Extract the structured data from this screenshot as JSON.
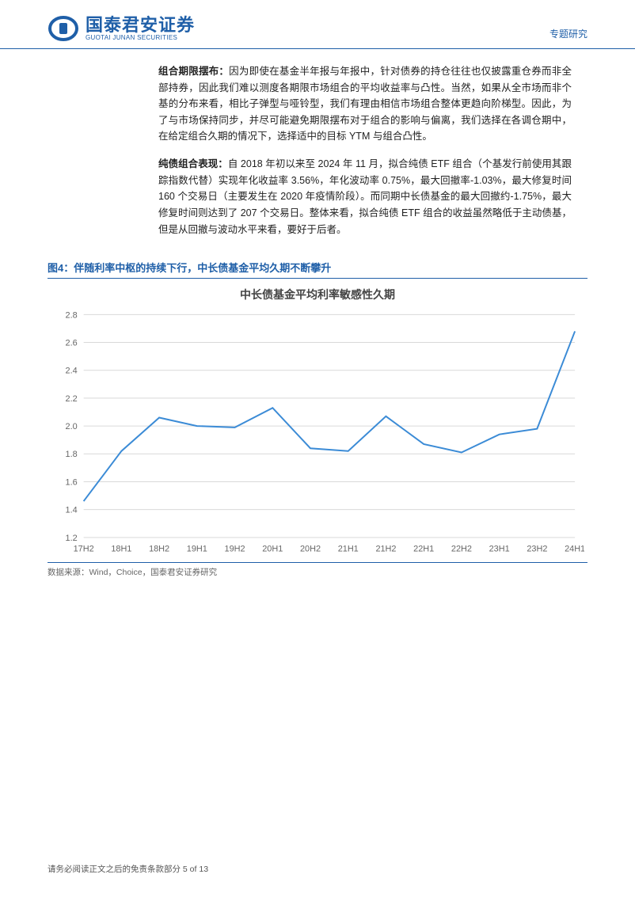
{
  "header": {
    "logo_cn": "国泰君安证券",
    "logo_en": "GUOTAI JUNAN SECURITIES",
    "category": "专题研究"
  },
  "body": {
    "p1_lead": "组合期限摆布：",
    "p1_text": "因为即使在基金半年报与年报中，针对债券的持仓往往也仅披露重仓券而非全部持券，因此我们难以测度各期限市场组合的平均收益率与凸性。当然，如果从全市场而非个基的分布来看，相比子弹型与哑铃型，我们有理由相信市场组合整体更趋向阶梯型。因此，为了与市场保持同步，并尽可能避免期限摆布对于组合的影响与偏离，我们选择在各调仓期中，在给定组合久期的情况下，选择适中的目标 YTM 与组合凸性。",
    "p2_lead": "纯债组合表现：",
    "p2_text": "自 2018 年初以来至 2024 年 11 月，拟合纯债 ETF 组合（个基发行前使用其跟踪指数代替）实现年化收益率 3.56%，年化波动率 0.75%，最大回撤率-1.03%，最大修复时间 160 个交易日（主要发生在 2020 年疫情阶段）。而同期中长债基金的最大回撤约-1.75%，最大修复时间则达到了 207 个交易日。整体来看，拟合纯债 ETF 组合的收益虽然略低于主动债基，但是从回撤与波动水平来看，要好于后者。"
  },
  "figure": {
    "caption": "图4：伴随利率中枢的持续下行，中长债基金平均久期不断攀升",
    "chart_title": "中长债基金平均利率敏感性久期",
    "source": "数据来源：Wind，Choice，国泰君安证券研究",
    "chart": {
      "type": "line",
      "categories": [
        "17H2",
        "18H1",
        "18H2",
        "19H1",
        "19H2",
        "20H1",
        "20H2",
        "21H1",
        "21H2",
        "22H1",
        "22H2",
        "23H1",
        "23H2",
        "24H1"
      ],
      "values": [
        1.46,
        1.82,
        2.06,
        2.0,
        1.99,
        2.13,
        1.84,
        1.82,
        2.07,
        1.87,
        1.81,
        1.94,
        1.98,
        2.68
      ],
      "line_color": "#3b8bd6",
      "ylim": [
        1.2,
        2.8
      ],
      "ytick_step": 0.2,
      "background_color": "#ffffff",
      "grid_color": "#d9d9d9",
      "axis_font_color": "#666666",
      "axis_fontsize": 11,
      "title_fontsize": 14,
      "line_width": 2
    }
  },
  "footer": {
    "disclaimer": "请务必阅读正文之后的免责条款部分",
    "page": "5 of 13"
  },
  "colors": {
    "brand": "#1f5fa8"
  }
}
